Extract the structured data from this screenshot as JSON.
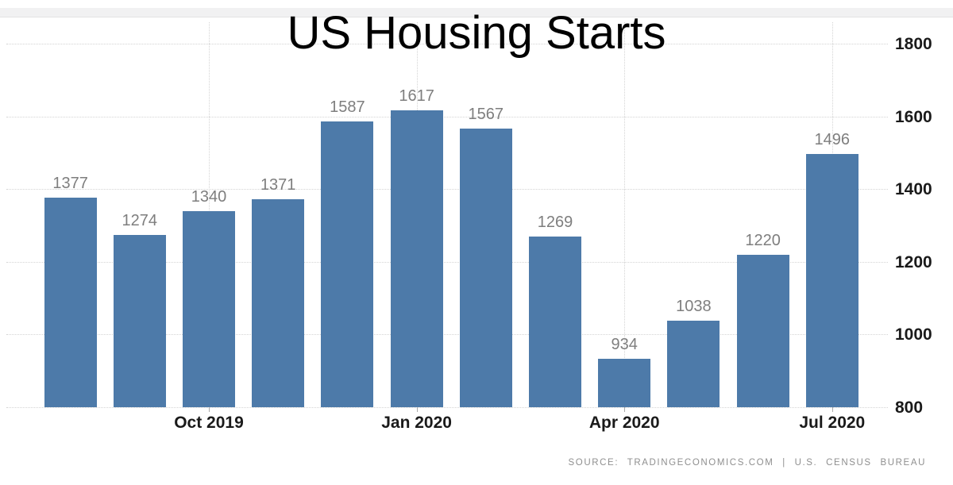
{
  "title": "US Housing Starts",
  "source_note": "SOURCE:  TRADINGECONOMICS.COM  |  U.S.  CENSUS  BUREAU",
  "colors": {
    "bar": "#4d7aa9",
    "grid": "#d4d4d4",
    "value_label": "#7e7e7e",
    "axis_label": "#1a1a1a",
    "source_text": "#8f8f8f",
    "top_strip_bg": "#f1f1f2",
    "top_strip_border": "#e3e3e3",
    "background": "#ffffff"
  },
  "chart_data": {
    "type": "bar",
    "title": "US Housing Starts",
    "values": [
      1377,
      1274,
      1340,
      1371,
      1587,
      1617,
      1567,
      1269,
      934,
      1038,
      1220,
      1496
    ],
    "bar_value_labels": [
      "1377",
      "1274",
      "1340",
      "1371",
      "1587",
      "1617",
      "1567",
      "1269",
      "934",
      "1038",
      "1220",
      "1496"
    ],
    "x_tick_labels": [
      "Oct 2019",
      "Jan 2020",
      "Apr 2020",
      "Jul 2020"
    ],
    "x_tick_bar_indices": [
      2,
      5,
      8,
      11
    ],
    "y_ticks": [
      800,
      1000,
      1200,
      1400,
      1600,
      1800
    ],
    "y_tick_labels": [
      "800",
      "1000",
      "1200",
      "1400",
      "1600",
      "1800"
    ],
    "ylim": [
      800,
      1800
    ],
    "y_axis_side": "right",
    "grid_style": "dotted",
    "legend": "none",
    "xlabel": "",
    "ylabel": "",
    "source": "SOURCE:  TRADINGECONOMICS.COM  |  U.S.  CENSUS  BUREAU"
  }
}
